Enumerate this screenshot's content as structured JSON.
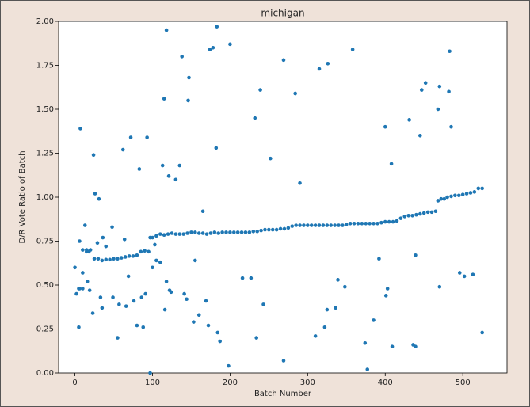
{
  "chart_data": {
    "type": "scatter",
    "title": "michigan",
    "x_label": "Batch Number",
    "y_label": "D/R Vote Ratio of Batch",
    "series": [
      {
        "color": "#1f77b4",
        "x": [
          5,
          10,
          15,
          20,
          25,
          30,
          35,
          40,
          45,
          50,
          55,
          60,
          65,
          70,
          75,
          80,
          85,
          90,
          95,
          97,
          100,
          105,
          110,
          115,
          120,
          125,
          130,
          135,
          140,
          145,
          150,
          155,
          160,
          165,
          170,
          175,
          180,
          185,
          190,
          195,
          200,
          205,
          210,
          215,
          220,
          225,
          230,
          235,
          240,
          245,
          250,
          255,
          260,
          265,
          270,
          275,
          280,
          285,
          290,
          295,
          300,
          305,
          310,
          315,
          320,
          325,
          330,
          335,
          340,
          345,
          350,
          355,
          360,
          365,
          370,
          375,
          380,
          385,
          390,
          395,
          400,
          405,
          410,
          415,
          420,
          425,
          430,
          435,
          440,
          445,
          450,
          455,
          460,
          465,
          468,
          472,
          476,
          480,
          485,
          490,
          495,
          500,
          505,
          510,
          515,
          520,
          525,
          0,
          2,
          5,
          6,
          7,
          6,
          10,
          10,
          13,
          15,
          16,
          18,
          19,
          23,
          24,
          26,
          31,
          29,
          33,
          35,
          36,
          40,
          48,
          49,
          55,
          57,
          62,
          64,
          66,
          69,
          72,
          76,
          80,
          83,
          86,
          88,
          91,
          93,
          97,
          100,
          103,
          105,
          110,
          113,
          115,
          118,
          116,
          118,
          121,
          122,
          124,
          130,
          135,
          138,
          141,
          144,
          146,
          147,
          153,
          155,
          160,
          165,
          169,
          172,
          174,
          178,
          182,
          183,
          184,
          187,
          198,
          200,
          216,
          227,
          232,
          234,
          239,
          243,
          252,
          269,
          269,
          284,
          290,
          310,
          315,
          322,
          325,
          326,
          336,
          339,
          348,
          358,
          374,
          377,
          385,
          392,
          400,
          401,
          403,
          408,
          409,
          431,
          436,
          439,
          439,
          445,
          447,
          452,
          468,
          470,
          470,
          482,
          483,
          485,
          496,
          502,
          513,
          525
        ],
        "values": [
          0.48,
          0.7,
          0.69,
          0.7,
          0.65,
          0.65,
          0.64,
          0.645,
          0.645,
          0.65,
          0.65,
          0.655,
          0.66,
          0.665,
          0.665,
          0.67,
          0.69,
          0.695,
          0.69,
          0.77,
          0.77,
          0.78,
          0.79,
          0.785,
          0.79,
          0.795,
          0.79,
          0.79,
          0.79,
          0.795,
          0.8,
          0.8,
          0.795,
          0.795,
          0.79,
          0.795,
          0.8,
          0.795,
          0.8,
          0.8,
          0.8,
          0.8,
          0.8,
          0.8,
          0.8,
          0.8,
          0.805,
          0.805,
          0.81,
          0.815,
          0.815,
          0.815,
          0.815,
          0.82,
          0.82,
          0.825,
          0.835,
          0.84,
          0.84,
          0.84,
          0.84,
          0.84,
          0.84,
          0.84,
          0.84,
          0.84,
          0.84,
          0.84,
          0.84,
          0.84,
          0.845,
          0.85,
          0.85,
          0.85,
          0.85,
          0.85,
          0.85,
          0.85,
          0.85,
          0.855,
          0.86,
          0.86,
          0.86,
          0.865,
          0.88,
          0.89,
          0.895,
          0.895,
          0.9,
          0.905,
          0.91,
          0.915,
          0.915,
          0.92,
          0.98,
          0.99,
          0.99,
          1.0,
          1.005,
          1.01,
          1.01,
          1.015,
          1.02,
          1.025,
          1.03,
          1.05,
          1.05,
          0.6,
          0.45,
          0.26,
          0.75,
          1.39,
          0.48,
          0.48,
          0.57,
          0.84,
          0.7,
          0.52,
          0.69,
          0.47,
          0.34,
          1.24,
          1.02,
          0.99,
          0.74,
          0.43,
          0.37,
          0.77,
          0.72,
          0.83,
          0.43,
          0.2,
          0.39,
          1.27,
          0.76,
          0.38,
          0.55,
          1.34,
          0.41,
          0.27,
          1.16,
          0.43,
          0.26,
          0.45,
          1.34,
          0.0,
          0.6,
          0.73,
          0.64,
          0.63,
          1.18,
          1.56,
          1.95,
          0.36,
          0.52,
          1.12,
          0.47,
          0.46,
          1.1,
          1.18,
          1.8,
          0.45,
          0.42,
          1.55,
          1.68,
          0.29,
          0.64,
          0.33,
          0.92,
          0.41,
          0.27,
          1.84,
          1.85,
          1.28,
          1.97,
          0.23,
          0.18,
          0.04,
          1.87,
          0.54,
          0.54,
          1.45,
          0.2,
          1.61,
          0.39,
          1.22,
          0.07,
          1.78,
          1.59,
          1.08,
          0.21,
          1.73,
          0.26,
          0.36,
          1.76,
          0.37,
          0.53,
          0.49,
          1.84,
          0.17,
          0.02,
          0.3,
          0.65,
          1.4,
          0.44,
          0.48,
          1.19,
          0.15,
          1.44,
          0.16,
          0.67,
          0.15,
          1.35,
          1.61,
          1.65,
          1.5,
          0.49,
          1.63,
          1.6,
          1.83,
          1.4,
          0.57,
          0.55,
          0.56,
          0.23
        ]
      }
    ],
    "xlim": [
      -21,
      557
    ],
    "ylim": [
      0,
      2
    ],
    "xticks": [
      0,
      100,
      200,
      300,
      400,
      500
    ],
    "yticks": [
      {
        "value": 0,
        "label": "0.00"
      },
      {
        "value": 0.25,
        "label": "0.25"
      },
      {
        "value": 0.5,
        "label": "0.50"
      },
      {
        "value": 0.75,
        "label": "0.75"
      },
      {
        "value": 1,
        "label": "1.00"
      },
      {
        "value": 1.25,
        "label": "1.25"
      },
      {
        "value": 1.5,
        "label": "1.50"
      },
      {
        "value": 1.75,
        "label": "1.75"
      },
      {
        "value": 2,
        "label": "2.00"
      }
    ]
  }
}
